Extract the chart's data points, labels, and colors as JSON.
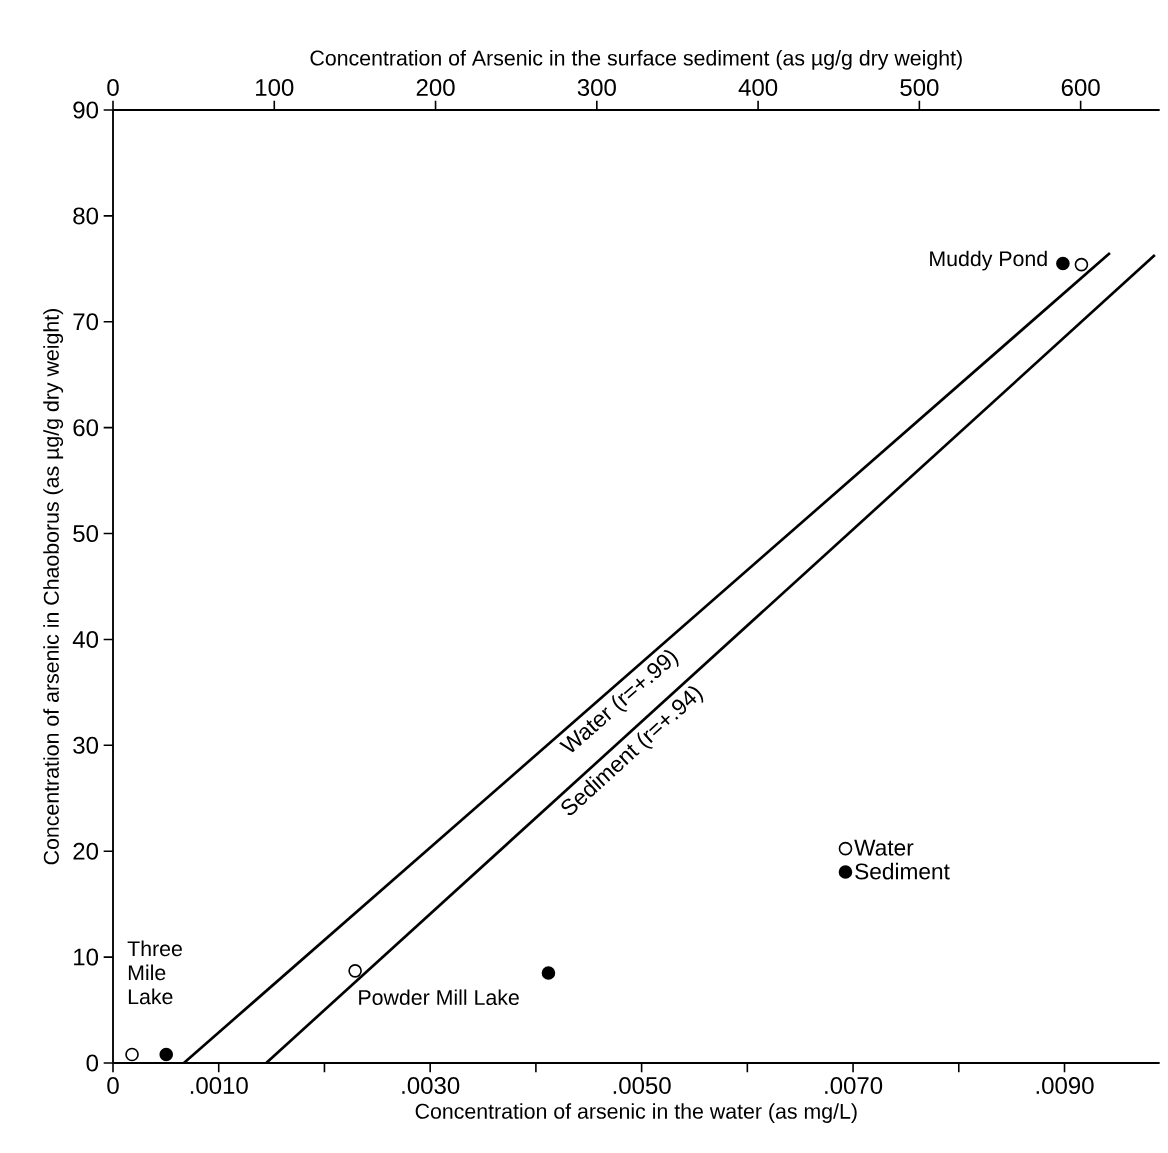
{
  "chart_data": {
    "type": "scatter",
    "xlabel": "Concentration of arsenic in the water (as mg/L)",
    "x2label": "Concentration of Arsenic in the surface sediment (as µg/g dry weight)",
    "ylabel": "Concentration of arsenic in Chaoborus (as µg/g dry weight)",
    "xlim": [
      0,
      0.0099
    ],
    "x2lim": [
      0,
      649
    ],
    "ylim": [
      0,
      90
    ],
    "xticks": [
      0,
      {
        "value": 0.001,
        "label": ".0010"
      },
      {
        "value": 0.002,
        "label": null
      },
      {
        "value": 0.003,
        "label": ".0030"
      },
      {
        "value": 0.004,
        "label": null
      },
      {
        "value": 0.005,
        "label": ".0050"
      },
      {
        "value": 0.006,
        "label": null
      },
      {
        "value": 0.007,
        "label": ".0070"
      },
      {
        "value": 0.008,
        "label": null
      },
      {
        "value": 0.009,
        "label": ".0090"
      }
    ],
    "x2ticks": [
      0,
      100,
      200,
      300,
      400,
      500,
      600
    ],
    "yticks": [
      0,
      10,
      20,
      30,
      40,
      50,
      60,
      70,
      80,
      90
    ],
    "legend": "bottom right",
    "series": [
      {
        "name": "Water",
        "marker": "circle",
        "color": "#ffffff",
        "x": [
          0.00018,
          0.00229,
          0.00916
        ],
        "values": [
          0.8,
          8.7,
          75.4
        ]
      },
      {
        "name": "Sediment",
        "marker": "circle",
        "axis": "x2",
        "color": "#000000",
        "x": [
          33,
          270,
          589
        ],
        "values": [
          0.8,
          8.5,
          75.5
        ]
      },
      {
        "name": "Water (r=+.99)",
        "type": "line",
        "marker": "none",
        "color": "#000000",
        "x": [
          0.00067,
          0.00943
        ],
        "values": [
          0,
          76.5
        ]
      },
      {
        "name": "Sediment (r=+.94)",
        "type": "line",
        "marker": "none",
        "axis": "x2",
        "color": "#000000",
        "x": [
          95,
          646
        ],
        "values": [
          0,
          76.3
        ]
      }
    ],
    "annotations": [
      "Three Mile Lake",
      "Powder Mill Lake",
      "Muddy Pond"
    ]
  }
}
